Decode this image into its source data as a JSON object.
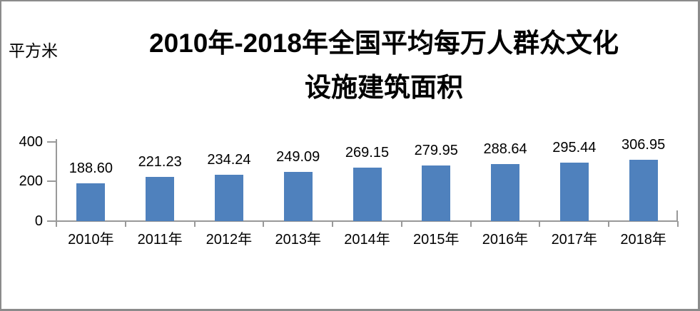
{
  "chart_data": {
    "type": "bar",
    "title": "2010年-2018年全国平均每万人群众文化设施建筑面积",
    "title_line1": "2010年-2018年全国平均每万人群众文化",
    "title_line2": "设施建筑面积",
    "unit_label": "平方米",
    "categories": [
      "2010年",
      "2011年",
      "2012年",
      "2013年",
      "2014年",
      "2015年",
      "2016年",
      "2017年",
      "2018年"
    ],
    "values": [
      188.6,
      221.23,
      234.24,
      249.09,
      269.15,
      279.95,
      288.64,
      295.44,
      306.95
    ],
    "value_labels": [
      "188.60",
      "221.23",
      "234.24",
      "249.09",
      "269.15",
      "279.95",
      "288.64",
      "295.44",
      "306.95"
    ],
    "y_axis": {
      "ticks": [
        0,
        200,
        400
      ],
      "tick_labels": [
        "0",
        "200",
        "400"
      ],
      "range": [
        0,
        400
      ]
    },
    "bar_color": "#4F81BD",
    "axis_color": "#999999",
    "legend": "none",
    "grid": "off"
  }
}
